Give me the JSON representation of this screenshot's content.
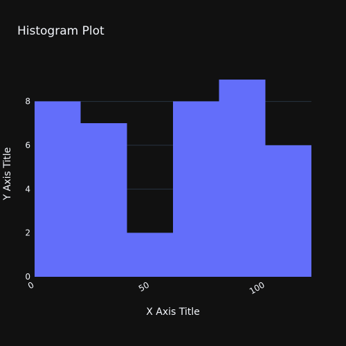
{
  "chart_data": {
    "type": "histogram",
    "title": "Histogram Plot",
    "xlabel": "X Axis Title",
    "ylabel": "Y Axis Title",
    "bin_width": 20,
    "bins": [
      {
        "start": 0,
        "end": 20,
        "count": 8
      },
      {
        "start": 20,
        "end": 40,
        "count": 7
      },
      {
        "start": 40,
        "end": 60,
        "count": 2
      },
      {
        "start": 60,
        "end": 80,
        "count": 8
      },
      {
        "start": 80,
        "end": 100,
        "count": 9
      },
      {
        "start": 100,
        "end": 120,
        "count": 6
      }
    ],
    "xlim": [
      0,
      120
    ],
    "ylim": [
      0,
      9.47
    ],
    "xticks": [
      0,
      50,
      100
    ],
    "yticks": [
      0,
      2,
      4,
      6,
      8
    ],
    "grid": true,
    "colors": {
      "background": "#111111",
      "bar": "#636efa",
      "grid": "#283442",
      "text": "#f2f5fa"
    }
  }
}
